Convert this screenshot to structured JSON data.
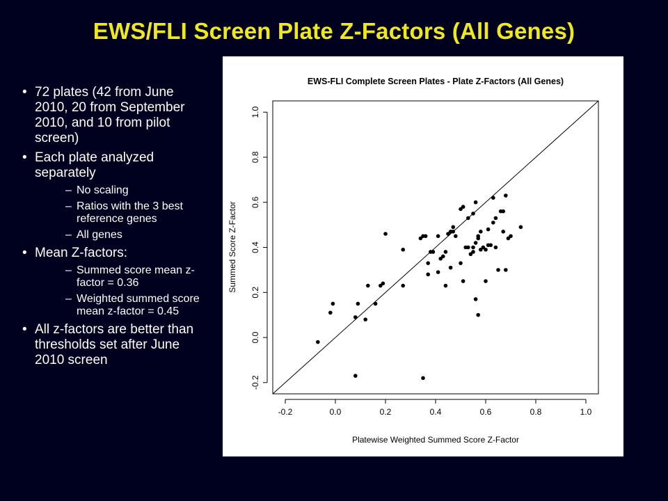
{
  "slide": {
    "title": "EWS/FLI Screen Plate Z-Factors (All Genes)",
    "colors": {
      "background": "#00001f",
      "title": "#f0e81a",
      "text": "#ffffff"
    }
  },
  "bullets": [
    {
      "text": "72 plates (42 from June 2010, 20 from September 2010, and 10 from pilot screen)",
      "sub": []
    },
    {
      "text": "Each plate analyzed separately",
      "sub": [
        "No scaling",
        "Ratios with the 3 best reference genes",
        "All genes"
      ]
    },
    {
      "text": "Mean Z-factors:",
      "sub": [
        "Summed score mean z-factor = 0.36",
        "Weighted summed score mean z-factor = 0.45"
      ]
    },
    {
      "text": "All z-factors are better than thresholds set after June 2010 screen",
      "sub": []
    }
  ],
  "chart_data": {
    "type": "scatter",
    "title": "EWS-FLI Complete Screen Plates - Plate Z-Factors (All Genes)",
    "xlabel": "Platewise Weighted Summed Score Z-Factor",
    "ylabel": "Summed Score Z-Factor",
    "xlim": [
      -0.25,
      1.05
    ],
    "ylim": [
      -0.25,
      1.05
    ],
    "xticks": [
      "-0.2",
      "0.0",
      "0.2",
      "0.4",
      "0.6",
      "0.8",
      "1.0"
    ],
    "yticks": [
      "-0.2",
      "0.0",
      "0.2",
      "0.4",
      "0.6",
      "0.8",
      "1.0"
    ],
    "reference_line": "y = x",
    "grid": false,
    "legend": false,
    "points": [
      [
        -0.07,
        -0.02
      ],
      [
        -0.02,
        0.11
      ],
      [
        -0.01,
        0.15
      ],
      [
        0.08,
        0.09
      ],
      [
        0.09,
        0.15
      ],
      [
        0.12,
        0.08
      ],
      [
        0.13,
        0.23
      ],
      [
        0.16,
        0.15
      ],
      [
        0.18,
        0.23
      ],
      [
        0.19,
        0.24
      ],
      [
        0.2,
        0.46
      ],
      [
        0.08,
        -0.17
      ],
      [
        0.27,
        0.39
      ],
      [
        0.27,
        0.23
      ],
      [
        0.34,
        0.44
      ],
      [
        0.35,
        0.45
      ],
      [
        0.36,
        0.45
      ],
      [
        0.37,
        0.33
      ],
      [
        0.37,
        0.28
      ],
      [
        0.39,
        0.38
      ],
      [
        0.41,
        0.45
      ],
      [
        0.41,
        0.29
      ],
      [
        0.42,
        0.35
      ],
      [
        0.43,
        0.36
      ],
      [
        0.44,
        0.38
      ],
      [
        0.44,
        0.23
      ],
      [
        0.45,
        0.46
      ],
      [
        0.46,
        0.31
      ],
      [
        0.47,
        0.47
      ],
      [
        0.47,
        0.49
      ],
      [
        0.48,
        0.45
      ],
      [
        0.5,
        0.57
      ],
      [
        0.5,
        0.33
      ],
      [
        0.51,
        0.58
      ],
      [
        0.51,
        0.25
      ],
      [
        0.52,
        0.4
      ],
      [
        0.53,
        0.53
      ],
      [
        0.54,
        0.37
      ],
      [
        0.55,
        0.55
      ],
      [
        0.55,
        0.38
      ],
      [
        0.56,
        0.6
      ],
      [
        0.56,
        0.42
      ],
      [
        0.56,
        0.17
      ],
      [
        0.57,
        0.45
      ],
      [
        0.57,
        0.44
      ],
      [
        0.57,
        0.1
      ],
      [
        0.58,
        0.47
      ],
      [
        0.58,
        0.39
      ],
      [
        0.59,
        0.4
      ],
      [
        0.6,
        0.25
      ],
      [
        0.61,
        0.41
      ],
      [
        0.61,
        0.48
      ],
      [
        0.62,
        0.41
      ],
      [
        0.63,
        0.51
      ],
      [
        0.63,
        0.62
      ],
      [
        0.64,
        0.53
      ],
      [
        0.64,
        0.4
      ],
      [
        0.65,
        0.3
      ],
      [
        0.66,
        0.56
      ],
      [
        0.67,
        0.56
      ],
      [
        0.67,
        0.47
      ],
      [
        0.68,
        0.3
      ],
      [
        0.68,
        0.63
      ],
      [
        0.69,
        0.44
      ],
      [
        0.7,
        0.45
      ],
      [
        0.74,
        0.49
      ],
      [
        0.35,
        -0.18
      ],
      [
        0.55,
        0.4
      ],
      [
        0.6,
        0.39
      ],
      [
        0.53,
        0.4
      ],
      [
        0.46,
        0.47
      ],
      [
        0.38,
        0.38
      ]
    ]
  }
}
